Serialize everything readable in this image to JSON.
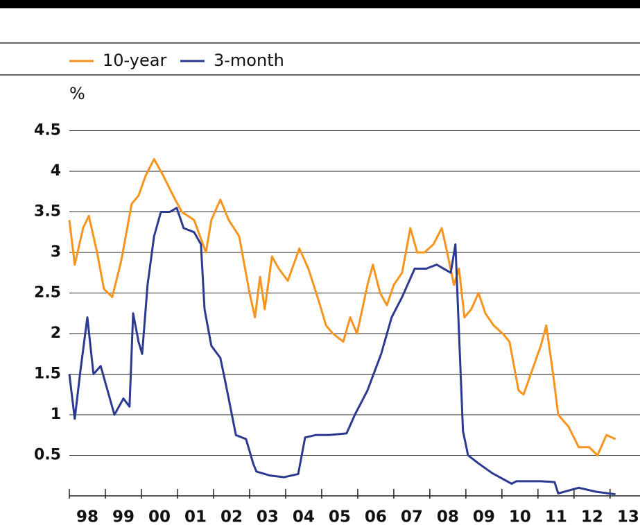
{
  "chart_data": {
    "type": "line",
    "y_label": "%",
    "xlim": [
      1998,
      2013.83
    ],
    "xticks": [
      {
        "value": 1998,
        "label": "98"
      },
      {
        "value": 1999,
        "label": "99"
      },
      {
        "value": 2000,
        "label": "00"
      },
      {
        "value": 2001,
        "label": "01"
      },
      {
        "value": 2002,
        "label": "02"
      },
      {
        "value": 2003,
        "label": "03"
      },
      {
        "value": 2004,
        "label": "04"
      },
      {
        "value": 2005,
        "label": "05"
      },
      {
        "value": 2006,
        "label": "06"
      },
      {
        "value": 2007,
        "label": "07"
      },
      {
        "value": 2008,
        "label": "08"
      },
      {
        "value": 2009,
        "label": "09"
      },
      {
        "value": 2010,
        "label": "10"
      },
      {
        "value": 2011,
        "label": "11"
      },
      {
        "value": 2012,
        "label": "12"
      },
      {
        "value": 2013,
        "label": "13"
      }
    ],
    "ylim": [
      0,
      4.5
    ],
    "yticks": [
      0.5,
      1,
      1.5,
      2,
      2.5,
      3,
      3.5,
      4,
      4.5
    ],
    "grid": true,
    "series": [
      {
        "name": "10-year",
        "color": "#f7941d",
        "x": [
          1998.0,
          1998.15,
          1998.38,
          1998.54,
          1998.77,
          1998.96,
          1999.19,
          1999.44,
          1999.73,
          1999.92,
          2000.12,
          2000.35,
          2000.6,
          2000.88,
          2001.12,
          2001.46,
          2001.79,
          2001.94,
          2002.19,
          2002.42,
          2002.71,
          2003.0,
          2003.15,
          2003.29,
          2003.42,
          2003.62,
          2003.81,
          2004.06,
          2004.38,
          2004.63,
          2004.92,
          2005.12,
          2005.31,
          2005.6,
          2005.79,
          2005.98,
          2006.27,
          2006.42,
          2006.62,
          2006.81,
          2007.0,
          2007.23,
          2007.46,
          2007.65,
          2007.85,
          2008.1,
          2008.33,
          2008.48,
          2008.67,
          2008.81,
          2008.96,
          2009.15,
          2009.35,
          2009.54,
          2009.77,
          2010.02,
          2010.21,
          2010.46,
          2010.6,
          2010.88,
          2011.08,
          2011.23,
          2011.42,
          2011.56,
          2011.85,
          2012.13,
          2012.42,
          2012.65,
          2012.9,
          2013.15
        ],
        "values": [
          3.4,
          2.85,
          3.3,
          3.45,
          3.0,
          2.55,
          2.45,
          2.9,
          3.6,
          3.7,
          3.95,
          4.15,
          3.95,
          3.7,
          3.5,
          3.4,
          3.0,
          3.4,
          3.65,
          3.4,
          3.2,
          2.5,
          2.2,
          2.7,
          2.3,
          2.95,
          2.8,
          2.65,
          3.05,
          2.8,
          2.4,
          2.1,
          2.0,
          1.9,
          2.2,
          2.0,
          2.6,
          2.85,
          2.5,
          2.35,
          2.6,
          2.75,
          3.3,
          3.0,
          3.0,
          3.1,
          3.3,
          3.0,
          2.6,
          2.8,
          2.2,
          2.3,
          2.5,
          2.25,
          2.1,
          2.0,
          1.9,
          1.3,
          1.25,
          1.6,
          1.85,
          2.1,
          1.5,
          1.0,
          0.85,
          0.6,
          0.6,
          0.5,
          0.75,
          0.7
        ]
      },
      {
        "name": "3-month",
        "color": "#2b3990",
        "x": [
          1998.0,
          1998.15,
          1998.31,
          1998.5,
          1998.67,
          1998.87,
          1999.06,
          1999.25,
          1999.5,
          1999.67,
          1999.77,
          1999.92,
          2000.02,
          2000.17,
          2000.35,
          2000.54,
          2000.79,
          2000.98,
          2001.17,
          2001.46,
          2001.65,
          2001.75,
          2001.94,
          2002.19,
          2002.33,
          2002.42,
          2002.62,
          2002.9,
          2003.1,
          2003.19,
          2003.58,
          2003.96,
          2004.35,
          2004.54,
          2004.83,
          2005.21,
          2005.69,
          2005.92,
          2006.27,
          2006.65,
          2006.94,
          2007.23,
          2007.58,
          2007.9,
          2008.19,
          2008.58,
          2008.71,
          2008.81,
          2008.92,
          2009.06,
          2009.35,
          2009.73,
          2010.27,
          2010.4,
          2011.08,
          2011.46,
          2011.56,
          2012.13,
          2012.62,
          2013.15
        ],
        "values": [
          1.5,
          0.95,
          1.55,
          2.2,
          1.5,
          1.6,
          1.3,
          1.0,
          1.2,
          1.1,
          2.25,
          1.9,
          1.75,
          2.6,
          3.2,
          3.5,
          3.5,
          3.55,
          3.3,
          3.25,
          3.1,
          2.3,
          1.85,
          1.7,
          1.4,
          1.2,
          0.75,
          0.7,
          0.4,
          0.3,
          0.25,
          0.23,
          0.27,
          0.72,
          0.75,
          0.75,
          0.77,
          1.0,
          1.3,
          1.75,
          2.2,
          2.45,
          2.8,
          2.8,
          2.85,
          2.75,
          3.1,
          2.0,
          0.8,
          0.5,
          0.4,
          0.28,
          0.15,
          0.18,
          0.18,
          0.17,
          0.03,
          0.1,
          0.05,
          0.02
        ]
      }
    ]
  }
}
